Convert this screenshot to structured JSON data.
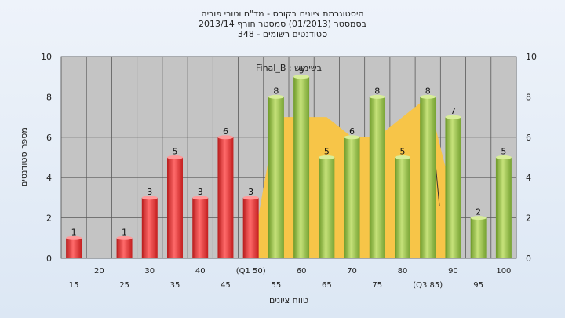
{
  "chart_data": {
    "type": "bar",
    "title_lines": [
      "היסטוגרמת ציונים בקורס - מד\"ח וטורי פוריה",
      "בסמסטר  (01/2013)  סמסטר חורף 2013/14",
      "סטודנטים רשומים - 348"
    ],
    "xlabel": "טווח ציונים",
    "ylabel": "מספר סטודנטים",
    "annotation": "בשימוש : Final_B",
    "ylim": [
      0,
      10
    ],
    "yticks": [
      0,
      2,
      4,
      6,
      8,
      10
    ],
    "grid": true,
    "categories": [
      "15",
      "20",
      "25",
      "30",
      "35",
      "40",
      "45",
      "50",
      "55",
      "60",
      "65",
      "70",
      "75",
      "80",
      "85",
      "90",
      "95",
      "100"
    ],
    "category_labels": [
      "15",
      "20",
      "25",
      "30",
      "35",
      "40",
      "45",
      "(Q1 50)",
      "55",
      "60",
      "65",
      "70",
      "75",
      "80",
      "(Q3 85)",
      "90",
      "95",
      "100"
    ],
    "values": [
      1,
      null,
      1,
      3,
      5,
      3,
      6,
      3,
      8,
      9,
      5,
      6,
      8,
      5,
      8,
      7,
      2,
      5
    ],
    "bar_colors": {
      "low": "#e03030",
      "high": "#8fbf40"
    },
    "high_from_category": "55",
    "band": {
      "color": "#f7c548",
      "values": [
        null,
        null,
        null,
        null,
        null,
        null,
        null,
        0,
        7,
        7,
        7,
        6,
        6,
        7,
        8,
        3,
        null,
        null
      ]
    }
  }
}
